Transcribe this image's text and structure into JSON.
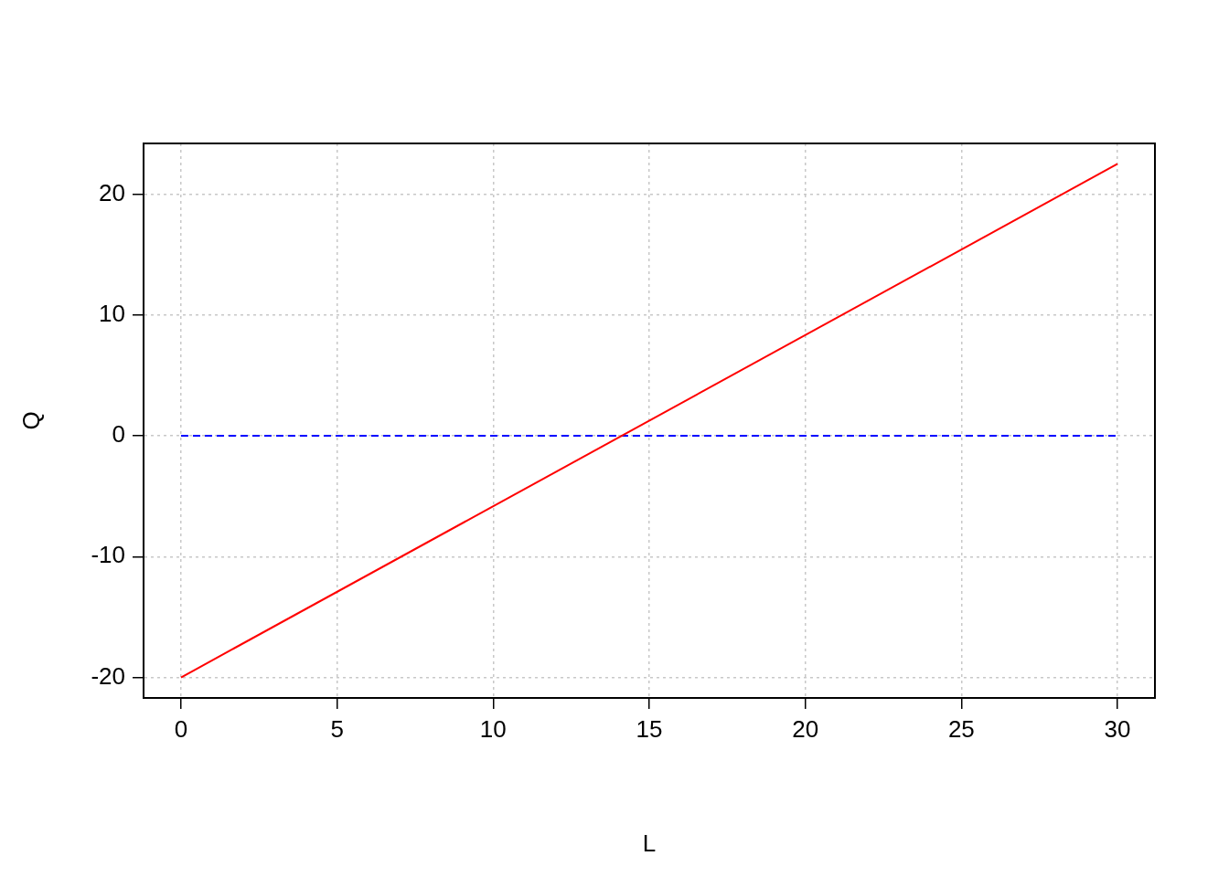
{
  "chart_data": {
    "type": "line",
    "xlabel": "L",
    "ylabel": "Q",
    "x": [
      0,
      30
    ],
    "series": [
      {
        "color": "#ff0000",
        "values": [
          -20,
          22.5
        ],
        "line_style": "solid"
      },
      {
        "color": "#0000ff",
        "values": [
          0,
          0
        ],
        "line_style": "dashed"
      }
    ],
    "xlim": [
      -1.2,
      31.2
    ],
    "xticks": [
      0,
      5,
      10,
      15,
      20,
      25,
      30
    ],
    "ylim": [
      -21.7,
      24.2
    ],
    "yticks": [
      -20,
      -10,
      0,
      10,
      20
    ],
    "grid": true,
    "legend": false,
    "marker": "none"
  }
}
